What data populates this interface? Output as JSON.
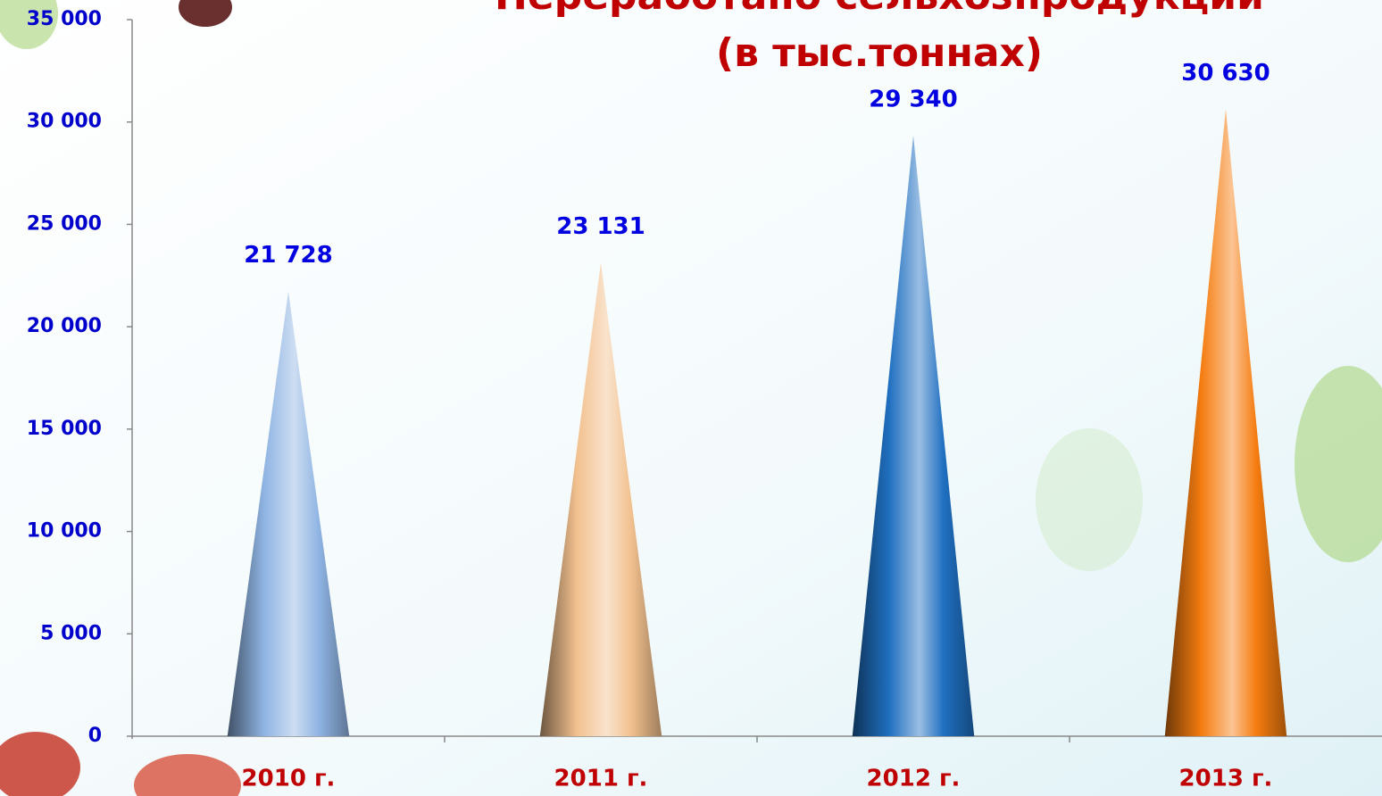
{
  "chart_data": {
    "type": "cone-bar",
    "title": "Переработано сельхозпродукции",
    "subtitle": "(в тыс.тоннах)",
    "categories": [
      "2010 г.",
      "2011 г.",
      "2012 г.",
      "2013 г."
    ],
    "values": [
      21728,
      23131,
      29340,
      30630
    ],
    "value_labels": [
      "21 728",
      "23 131",
      "29 340",
      "30 630"
    ],
    "colors": [
      "#8fb4e3",
      "#f2c08e",
      "#1f6fc0",
      "#f57c10"
    ],
    "ylim": [
      0,
      35000
    ],
    "yticks": [
      0,
      {
        "value": 5000,
        "label": "5 000"
      },
      {
        "value": 10000,
        "label": "10 000"
      },
      {
        "value": 15000,
        "label": "15 000"
      },
      {
        "value": 20000,
        "label": "20 000"
      },
      {
        "value": 25000,
        "label": "25 000"
      },
      {
        "value": 30000,
        "label": "30 000"
      },
      {
        "value": 35000,
        "label": "35 000"
      }
    ],
    "grid": false
  }
}
